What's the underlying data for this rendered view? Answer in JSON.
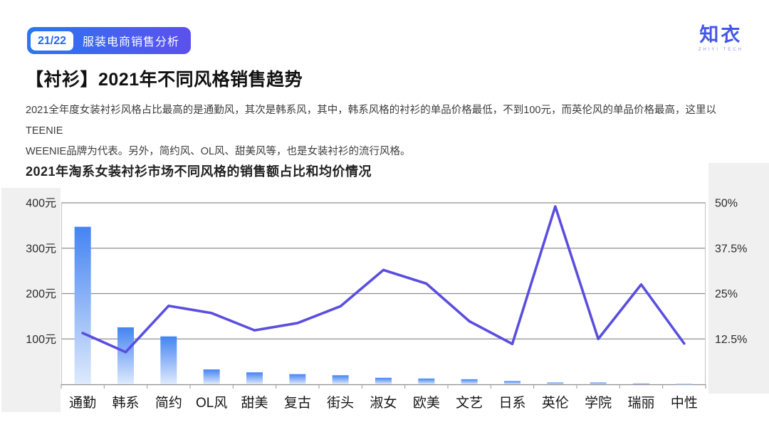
{
  "header": {
    "page_number": "21/22",
    "section_label": "服装电商销售分析",
    "badge_gradient_start": "#2b76f3",
    "badge_gradient_end": "#5c50ee"
  },
  "logo": {
    "name": "知衣",
    "subtext": "ZHIYI TECH",
    "color": "#4356e8"
  },
  "title": "【衬衫】2021年不同风格销售趋势",
  "description_lines": [
    "2021全年度女装衬衫风格占比最高的是通勤风，其次是韩系风，其中，韩系风格的衬衫的单品价格最低，不到100元，而英伦风的单品价格最高，这里以TEENIE",
    "WEENIE品牌为代表。另外，简约风、OL风、甜美风等，也是女装衬衫的流行风格。"
  ],
  "chart_title": "2021年淘系女装衬衫市场不同风格的销售额占比和均价情况",
  "chart_data": {
    "type": "bar+line combo",
    "categories": [
      "通勤",
      "韩系",
      "简约",
      "OL风",
      "甜美",
      "复古",
      "街头",
      "淑女",
      "欧美",
      "文艺",
      "日系",
      "英伦",
      "学院",
      "瑞丽",
      "中性"
    ],
    "series": [
      {
        "name": "销售额占比",
        "type": "bar",
        "axis": "right",
        "unit": "%",
        "values": [
          43.4,
          15.7,
          13.2,
          4.1,
          3.3,
          2.8,
          2.5,
          1.8,
          1.6,
          1.4,
          0.9,
          0.5,
          0.5,
          0.25,
          0.12
        ]
      },
      {
        "name": "均价",
        "type": "line",
        "axis": "left",
        "unit": "元",
        "values": [
          113,
          71,
          173,
          157,
          119,
          135,
          172,
          252,
          222,
          139,
          89,
          392,
          100,
          220,
          90
        ]
      }
    ],
    "left_axis": {
      "ticks": [
        "100元",
        "200元",
        "300元",
        "400元"
      ],
      "range": [
        0,
        400
      ]
    },
    "right_axis": {
      "ticks": [
        "12.5%",
        "25%",
        "37.5%",
        "50%"
      ],
      "range": [
        0,
        50
      ]
    },
    "legend": "none",
    "grid": "horizontal",
    "bar_color_top": "#4484f2",
    "bar_color_bottom": "#dfeafc",
    "line_color": "#5a4ee0",
    "grid_color": "#8e8e8e",
    "tick_color": "#999999",
    "border_color": "#c2c2c2",
    "panel_color": "#f0f0f0",
    "axis_label_color": "#2b2b2b",
    "category_label_color": "#151515"
  }
}
